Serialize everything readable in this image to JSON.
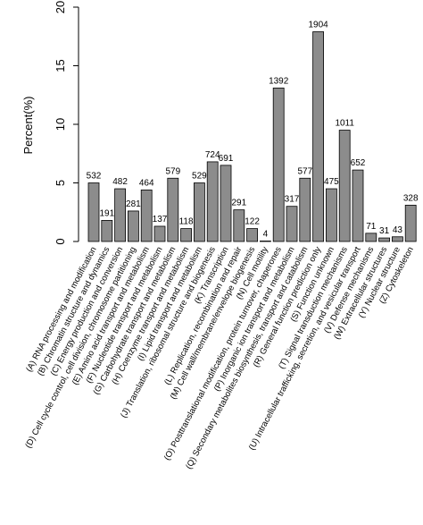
{
  "chart_data": {
    "type": "bar",
    "y_label": "Percent(%)",
    "categories": [
      "(A) RNA processing and modification",
      "(B) Chromatin structure and dynamics",
      "(C) Energy production and conversion",
      "(D) Cell cycle control, cell division, chromosome partitioning",
      "(E) Amino acid transport and metabolism",
      "(F) Nucleotide transport and metabolism",
      "(G) Carbohydrate transport and metabolism",
      "(H) Coenzyme transport and metabolism",
      "(I) Lipid transport and metabolism",
      "(J) Translation, ribosomal structure and biogenesis",
      "(K) Transcription",
      "(L) Replication, recombination and repair",
      "(M) Cell wall/membrane/envelope biogenesis",
      "(N) Cell motility",
      "(O) Posttranslational modification, protein turnover, chaperones",
      "(P) Inorganic ion transport and metabolism",
      "(Q) Secondary metabolites biosynthesis, transport and catabolism",
      "(R) General function prediction only",
      "(S) Function unknown",
      "(T) Signal transduction mechanisms",
      "(U) Intracellular trafficking, secretion, and vesicular transport",
      "(V) Defense mechanisms",
      "(W) Extracellular structures",
      "(Y) Nuclear structure",
      "(Z) Cytoskeleton"
    ],
    "values": [
      5.0,
      1.8,
      4.5,
      2.6,
      4.4,
      1.3,
      5.4,
      1.1,
      5.0,
      6.8,
      6.5,
      2.7,
      1.1,
      0.04,
      13.1,
      3.0,
      5.4,
      17.9,
      4.5,
      9.5,
      6.1,
      0.7,
      0.3,
      0.4,
      3.1
    ],
    "counts": [
      532,
      191,
      482,
      281,
      464,
      137,
      579,
      118,
      529,
      724,
      691,
      291,
      122,
      4,
      1392,
      317,
      577,
      1904,
      475,
      1011,
      652,
      71,
      31,
      43,
      328
    ],
    "color": "#8c8c8c",
    "ylim": [
      0,
      20
    ],
    "yticks": [
      0,
      5,
      10,
      15,
      20
    ]
  }
}
